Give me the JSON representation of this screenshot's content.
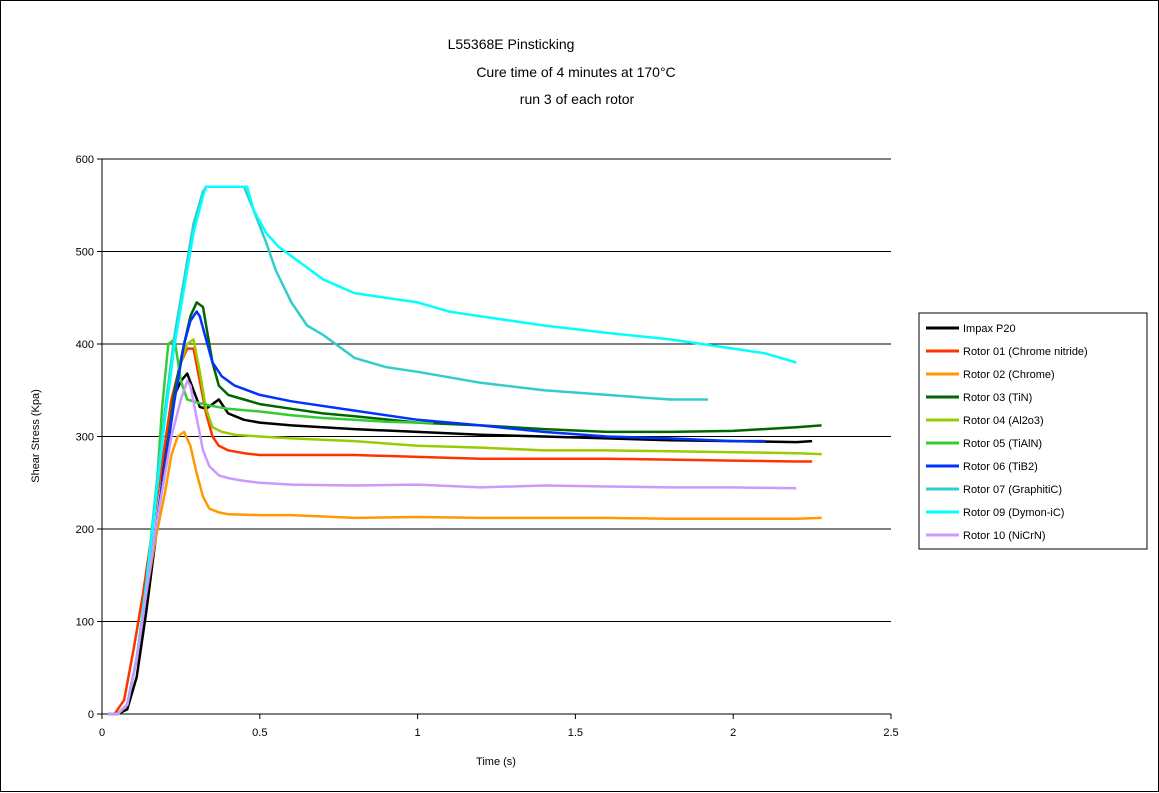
{
  "chart_data": {
    "type": "line",
    "title_lines": [
      "L55368E Pinsticking",
      "Cure time of 4 minutes at 170°C",
      "run 3 of each rotor"
    ],
    "xlabel": "Time (s)",
    "ylabel": "Shear Stress (Kpa)",
    "xlim": [
      0,
      2.5
    ],
    "ylim": [
      0,
      600
    ],
    "x_ticks": [
      "0",
      "0.5",
      "1",
      "1.5",
      "2",
      "2.5"
    ],
    "y_ticks": [
      "0",
      "100",
      "200",
      "300",
      "400",
      "500",
      "600"
    ],
    "grid": "horizontal major",
    "legend_position": "right",
    "series": [
      {
        "name": "Impax P20",
        "color": "#000000",
        "x": [
          0.02,
          0.05,
          0.08,
          0.11,
          0.14,
          0.17,
          0.2,
          0.23,
          0.25,
          0.27,
          0.29,
          0.31,
          0.33,
          0.35,
          0.37,
          0.4,
          0.45,
          0.5,
          0.6,
          0.7,
          0.8,
          1.0,
          1.2,
          1.4,
          1.6,
          1.8,
          2.0,
          2.2,
          2.25
        ],
        "y": [
          0,
          0,
          5,
          40,
          110,
          190,
          280,
          345,
          360,
          368,
          350,
          332,
          330,
          335,
          340,
          325,
          318,
          315,
          312,
          310,
          308,
          305,
          302,
          300,
          298,
          296,
          295,
          294,
          295
        ]
      },
      {
        "name": "Rotor 01 (Chrome nitride)",
        "color": "#ff3300",
        "x": [
          0.02,
          0.04,
          0.07,
          0.1,
          0.13,
          0.16,
          0.19,
          0.22,
          0.25,
          0.27,
          0.29,
          0.31,
          0.33,
          0.35,
          0.37,
          0.4,
          0.45,
          0.5,
          0.6,
          0.7,
          0.8,
          1.0,
          1.2,
          1.4,
          1.6,
          1.8,
          2.0,
          2.2,
          2.25
        ],
        "y": [
          0,
          0,
          15,
          70,
          130,
          200,
          270,
          340,
          380,
          395,
          395,
          360,
          325,
          300,
          290,
          285,
          282,
          280,
          280,
          280,
          280,
          278,
          276,
          276,
          276,
          275,
          274,
          273,
          273
        ]
      },
      {
        "name": "Rotor 02 (Chrome)",
        "color": "#ff9900",
        "x": [
          0.02,
          0.05,
          0.08,
          0.11,
          0.14,
          0.17,
          0.2,
          0.22,
          0.24,
          0.26,
          0.28,
          0.3,
          0.32,
          0.34,
          0.37,
          0.4,
          0.5,
          0.6,
          0.8,
          1.0,
          1.2,
          1.4,
          1.6,
          1.8,
          2.0,
          2.2,
          2.28
        ],
        "y": [
          0,
          0,
          10,
          60,
          130,
          190,
          240,
          280,
          300,
          305,
          290,
          260,
          235,
          222,
          218,
          216,
          215,
          215,
          212,
          213,
          212,
          212,
          212,
          211,
          211,
          211,
          212
        ]
      },
      {
        "name": "Rotor 03 (TiN)",
        "color": "#006600",
        "x": [
          0.02,
          0.05,
          0.08,
          0.11,
          0.14,
          0.17,
          0.2,
          0.23,
          0.26,
          0.28,
          0.3,
          0.32,
          0.33,
          0.35,
          0.37,
          0.4,
          0.45,
          0.5,
          0.6,
          0.7,
          0.8,
          1.0,
          1.2,
          1.4,
          1.6,
          1.8,
          2.0,
          2.2,
          2.28
        ],
        "y": [
          0,
          0,
          10,
          60,
          130,
          200,
          270,
          350,
          400,
          430,
          445,
          440,
          420,
          380,
          355,
          345,
          340,
          335,
          330,
          325,
          322,
          315,
          312,
          308,
          305,
          305,
          306,
          310,
          312
        ]
      },
      {
        "name": "Rotor 04 (Al2o3)",
        "color": "#99cc00",
        "x": [
          0.02,
          0.05,
          0.08,
          0.11,
          0.14,
          0.17,
          0.2,
          0.23,
          0.25,
          0.27,
          0.29,
          0.31,
          0.33,
          0.35,
          0.38,
          0.42,
          0.5,
          0.6,
          0.8,
          1.0,
          1.2,
          1.4,
          1.6,
          1.8,
          2.0,
          2.2,
          2.28
        ],
        "y": [
          0,
          0,
          10,
          60,
          130,
          200,
          270,
          340,
          380,
          400,
          405,
          370,
          330,
          310,
          305,
          302,
          300,
          298,
          295,
          290,
          288,
          285,
          285,
          284,
          283,
          282,
          281
        ]
      },
      {
        "name": "Rotor 05 (TiAlN)",
        "color": "#33cc33",
        "x": [
          0.02,
          0.05,
          0.08,
          0.11,
          0.14,
          0.17,
          0.19,
          0.21,
          0.23,
          0.25,
          0.27,
          0.29,
          0.31,
          0.35,
          0.4,
          0.5,
          0.6,
          0.7,
          0.8,
          0.9,
          1.0,
          1.05
        ],
        "y": [
          0,
          0,
          10,
          60,
          140,
          230,
          330,
          400,
          405,
          360,
          340,
          338,
          336,
          333,
          330,
          327,
          323,
          320,
          318,
          316,
          315,
          315
        ]
      },
      {
        "name": "Rotor 06 (TiB2)",
        "color": "#0033ff",
        "x": [
          0.02,
          0.05,
          0.08,
          0.11,
          0.14,
          0.17,
          0.2,
          0.23,
          0.26,
          0.28,
          0.3,
          0.31,
          0.33,
          0.35,
          0.38,
          0.42,
          0.5,
          0.6,
          0.8,
          1.0,
          1.2,
          1.4,
          1.6,
          1.8,
          2.0,
          2.1
        ],
        "y": [
          0,
          0,
          10,
          60,
          130,
          200,
          270,
          340,
          400,
          425,
          435,
          430,
          405,
          380,
          365,
          355,
          345,
          338,
          328,
          318,
          312,
          305,
          300,
          298,
          295,
          295
        ]
      },
      {
        "name": "Rotor 07 (GraphitiC)",
        "color": "#33cccc",
        "x": [
          0.02,
          0.05,
          0.08,
          0.11,
          0.14,
          0.17,
          0.2,
          0.23,
          0.26,
          0.29,
          0.32,
          0.33,
          0.45,
          0.48,
          0.52,
          0.55,
          0.6,
          0.65,
          0.7,
          0.8,
          0.9,
          1.0,
          1.2,
          1.4,
          1.6,
          1.8,
          1.92
        ],
        "y": [
          0,
          0,
          10,
          60,
          140,
          240,
          330,
          410,
          470,
          530,
          565,
          570,
          570,
          545,
          510,
          480,
          445,
          420,
          410,
          385,
          375,
          370,
          358,
          350,
          345,
          340,
          340
        ]
      },
      {
        "name": "Rotor 09 (Dymon-iC)",
        "color": "#00ffff",
        "x": [
          0.02,
          0.05,
          0.08,
          0.11,
          0.14,
          0.17,
          0.2,
          0.23,
          0.26,
          0.29,
          0.32,
          0.33,
          0.46,
          0.48,
          0.52,
          0.56,
          0.6,
          0.7,
          0.8,
          0.9,
          1.0,
          1.1,
          1.2,
          1.4,
          1.6,
          1.8,
          2.0,
          2.1,
          2.2
        ],
        "y": [
          0,
          0,
          10,
          60,
          140,
          230,
          320,
          400,
          460,
          520,
          560,
          570,
          570,
          545,
          520,
          505,
          495,
          470,
          455,
          450,
          445,
          435,
          430,
          420,
          412,
          405,
          395,
          390,
          380
        ]
      },
      {
        "name": "Rotor 10 (NiCrN)",
        "color": "#cc99ff",
        "x": [
          0.02,
          0.05,
          0.08,
          0.11,
          0.14,
          0.17,
          0.2,
          0.22,
          0.25,
          0.27,
          0.28,
          0.3,
          0.32,
          0.34,
          0.37,
          0.4,
          0.45,
          0.5,
          0.6,
          0.8,
          1.0,
          1.2,
          1.4,
          1.6,
          1.8,
          2.0,
          2.2
        ],
        "y": [
          0,
          0,
          10,
          60,
          130,
          200,
          260,
          300,
          340,
          360,
          355,
          320,
          285,
          268,
          258,
          255,
          252,
          250,
          248,
          247,
          248,
          245,
          247,
          246,
          245,
          245,
          244
        ]
      }
    ]
  }
}
